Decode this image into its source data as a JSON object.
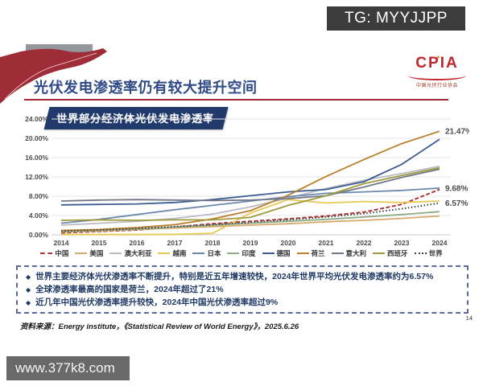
{
  "badge": {
    "text": "TG: MYYJJPP"
  },
  "header": {
    "title": "光伏发电渗透率仍有较大提升空间",
    "logo": {
      "acronym": "CPIA",
      "spark": "✦",
      "subtitle": "中国光伏行业协会"
    }
  },
  "chart": {
    "heading": "世界部分经济体光伏发电渗透率"
  },
  "chart_data": {
    "type": "line",
    "title": "世界部分经济体光伏发电渗透率",
    "categories": [
      "2014",
      "2015",
      "2016",
      "2017",
      "2018",
      "2019",
      "2020",
      "2021",
      "2022",
      "2023",
      "2024"
    ],
    "y_ticks": [
      "0.00%",
      "4.00%",
      "8.00%",
      "12.00%",
      "16.00%",
      "20.00%",
      "24.00%"
    ],
    "ylim": [
      0,
      24
    ],
    "grid": true,
    "legend_position": "bottom",
    "series": [
      {
        "name": "中国",
        "color": "#b03333",
        "style": "dashed",
        "values": [
          0.4,
          0.7,
          1.0,
          1.6,
          2.3,
          2.8,
          3.3,
          3.9,
          4.7,
          6.3,
          9.4
        ]
      },
      {
        "name": "美国",
        "color": "#d8a96d",
        "style": "solid",
        "values": [
          0.6,
          0.8,
          1.1,
          1.4,
          1.7,
          2.0,
          2.3,
          2.7,
          3.0,
          3.4,
          3.9
        ]
      },
      {
        "name": "澳大利亚",
        "color": "#b9bcc4",
        "style": "solid",
        "values": [
          2.0,
          2.4,
          2.8,
          3.4,
          4.3,
          5.8,
          7.6,
          9.6,
          11.3,
          12.7,
          14.2
        ]
      },
      {
        "name": "越南",
        "color": "#e7c94f",
        "style": "solid",
        "values": [
          0.05,
          0.05,
          0.05,
          0.1,
          0.3,
          4.5,
          7.3,
          6.6,
          6.9,
          6.7,
          7.0
        ]
      },
      {
        "name": "日本",
        "color": "#6d89ad",
        "style": "solid",
        "values": [
          2.4,
          3.2,
          4.2,
          5.2,
          6.1,
          7.0,
          7.9,
          8.6,
          8.9,
          9.2,
          9.68
        ]
      },
      {
        "name": "印度",
        "color": "#8fac88",
        "style": "solid",
        "values": [
          0.7,
          0.9,
          1.2,
          1.6,
          2.0,
          2.4,
          2.8,
          3.2,
          3.7,
          4.2,
          4.8
        ]
      },
      {
        "name": "德国",
        "color": "#3c5d92",
        "style": "solid",
        "values": [
          6.2,
          6.3,
          6.4,
          6.7,
          7.3,
          8.1,
          8.9,
          9.4,
          11.0,
          14.6,
          19.8
        ]
      },
      {
        "name": "荷兰",
        "color": "#bb7f2c",
        "style": "solid",
        "values": [
          0.9,
          1.1,
          1.5,
          2.1,
          3.3,
          5.0,
          8.2,
          12.1,
          15.6,
          18.9,
          21.47
        ]
      },
      {
        "name": "意大利",
        "color": "#707888",
        "style": "solid",
        "values": [
          7.0,
          7.2,
          7.3,
          7.2,
          7.1,
          7.2,
          7.5,
          8.1,
          9.9,
          11.9,
          13.6
        ]
      },
      {
        "name": "西班牙",
        "color": "#a09a3e",
        "style": "solid",
        "values": [
          3.0,
          3.1,
          3.0,
          3.1,
          3.1,
          3.6,
          6.1,
          8.1,
          10.6,
          12.3,
          13.9
        ]
      },
      {
        "name": "世界",
        "color": "#3f3f3f",
        "style": "dotted",
        "values": [
          0.8,
          1.0,
          1.3,
          1.7,
          2.1,
          2.6,
          3.1,
          3.7,
          4.4,
          5.4,
          6.57
        ]
      }
    ],
    "end_labels": [
      {
        "series": "荷兰",
        "text": "21.47%"
      },
      {
        "series": "日本",
        "text": "9.68%"
      },
      {
        "series": "世界",
        "text": "6.57%"
      }
    ]
  },
  "notes": {
    "bullet_marker": "◆",
    "bullets": [
      "世界主要经济体光伏渗透率不断提升，特别是近五年增速较快，2024年世界平均光伏发电渗透率约为6.57%",
      "全球渗透率最高的国家是荷兰，2024年超过了21%",
      "近几年中国光伏渗透率提升较快，2024年中国光伏渗透率超过9%"
    ]
  },
  "footer": {
    "source": "资料来源：Energy institute，《Statistical Review of World Energy》，2025.6.26",
    "page_number": "14",
    "watermark": "www.377k8.com"
  },
  "colors": {
    "accent_red": "#a5293a",
    "navy": "#1f3864",
    "badge_gray": "#3c3c3c"
  }
}
